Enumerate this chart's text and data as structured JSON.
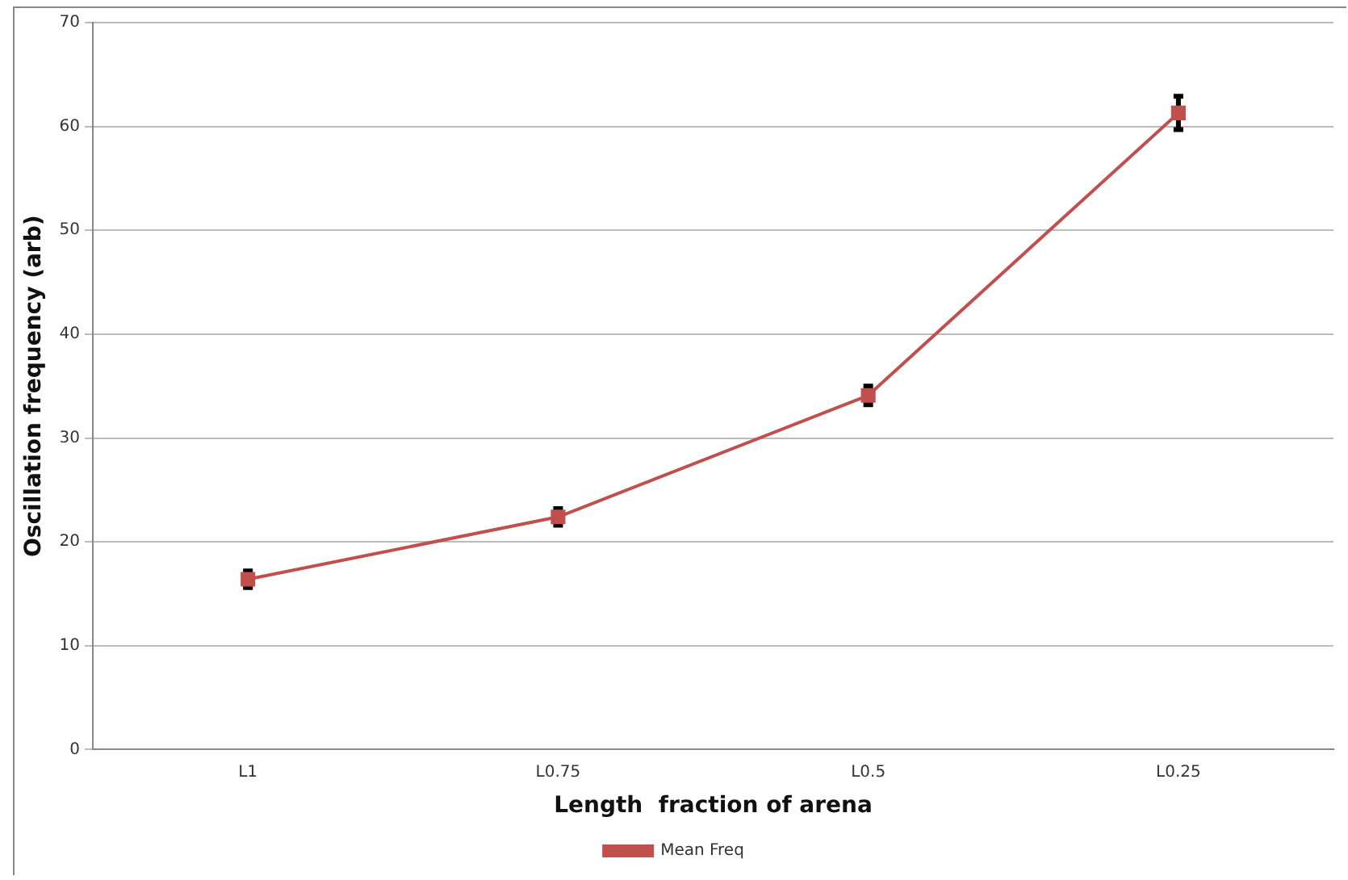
{
  "chart_data": {
    "type": "line",
    "xlabel": "Length  fraction of arena",
    "ylabel": "Oscillation frequency (arb)",
    "categories": [
      "L1",
      "L0.75",
      "L0.5",
      "L0.25"
    ],
    "series": [
      {
        "name": "Mean Freq",
        "color": "#c0504d",
        "values": [
          16.4,
          22.4,
          34.1,
          61.3
        ],
        "errors": [
          0.8,
          0.8,
          0.9,
          1.6
        ]
      }
    ],
    "ylim": [
      0,
      70
    ],
    "yticks": [
      0,
      10,
      20,
      30,
      40,
      50,
      60,
      70
    ],
    "grid": "y",
    "legend": "bottom",
    "marker": "square",
    "line_style": "solid"
  }
}
